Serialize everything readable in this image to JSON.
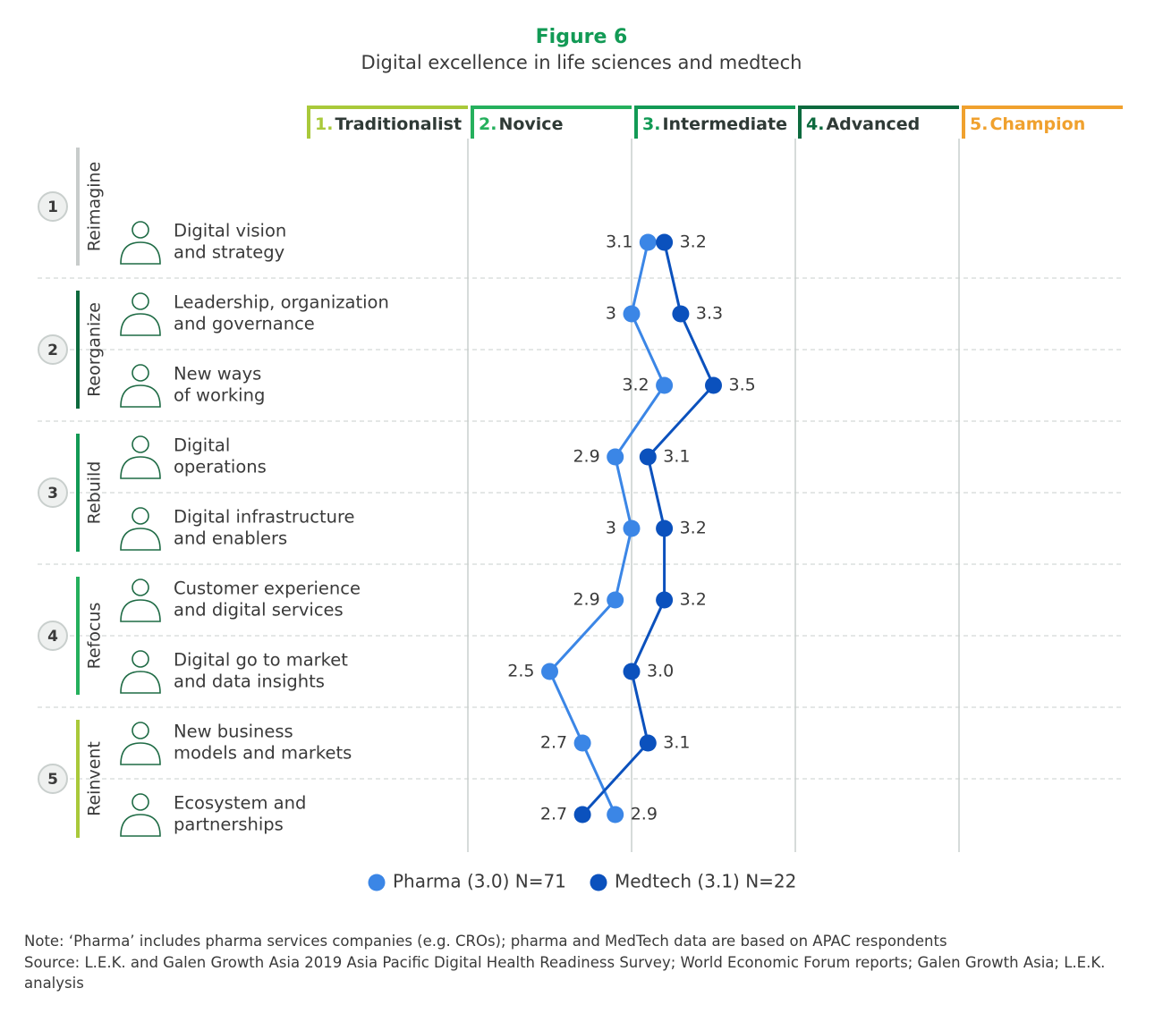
{
  "chart_data": {
    "type": "dot-line",
    "title": "Figure 6",
    "subtitle": "Digital excellence in life sciences and medtech",
    "stages": [
      {
        "num": "1.",
        "name": "Traditionalist",
        "color": "#a9c93a"
      },
      {
        "num": "2.",
        "name": "Novice",
        "color": "#25b05d"
      },
      {
        "num": "3.",
        "name": "Intermediate",
        "color": "#129a55"
      },
      {
        "num": "4.",
        "name": "Advanced",
        "color": "#0d6a3e"
      },
      {
        "num": "5.",
        "name": "Champion",
        "color": "#f0a12e"
      }
    ],
    "groups": [
      {
        "num": "1",
        "name": "Reimagine",
        "color": "#c8cccb",
        "rows": 1
      },
      {
        "num": "2",
        "name": "Reorganize",
        "color": "#0d6a3e",
        "rows": 2
      },
      {
        "num": "3",
        "name": "Rebuild",
        "color": "#129a55",
        "rows": 2
      },
      {
        "num": "4",
        "name": "Refocus",
        "color": "#25b05d",
        "rows": 2
      },
      {
        "num": "5",
        "name": "Reinvent",
        "color": "#a9c93a",
        "rows": 2
      }
    ],
    "categories": [
      [
        "Digital vision",
        "and strategy"
      ],
      [
        "Leadership, organization",
        "and governance"
      ],
      [
        "New ways",
        "of working"
      ],
      [
        "Digital",
        "operations"
      ],
      [
        "Digital infrastructure",
        "and enablers"
      ],
      [
        "Customer experience",
        "and digital services"
      ],
      [
        "Digital go to market",
        "and data insights"
      ],
      [
        "New business",
        "models and markets"
      ],
      [
        "Ecosystem and",
        "partnerships"
      ]
    ],
    "series": [
      {
        "name": "Pharma (3.0) N=71",
        "color": "#3b86e6",
        "values": [
          3.1,
          3,
          3.2,
          2.9,
          3,
          2.9,
          2.5,
          2.7,
          2.9
        ]
      },
      {
        "name": "Medtech (3.1) N=22",
        "color": "#0b51bd",
        "values": [
          3.2,
          3.3,
          3.5,
          3.1,
          3.2,
          3.2,
          3.0,
          3.1,
          2.7
        ],
        "value_labels": [
          "3.2",
          "3.3",
          "3.5",
          "3.1",
          "3.2",
          "3.2",
          "3.0",
          "3.1",
          "2.7"
        ]
      }
    ],
    "xlim": [
      1,
      6
    ],
    "xticks": [
      2,
      3,
      4,
      5
    ],
    "grid": true,
    "note": "Note: ‘Pharma’ includes pharma services companies (e.g. CROs); pharma and MedTech data are based on APAC respondents",
    "source": "Source: L.E.K. and Galen Growth Asia 2019 Asia Pacific Digital Health Readiness Survey; World Economic Forum reports; Galen Growth Asia; L.E.K. analysis"
  }
}
